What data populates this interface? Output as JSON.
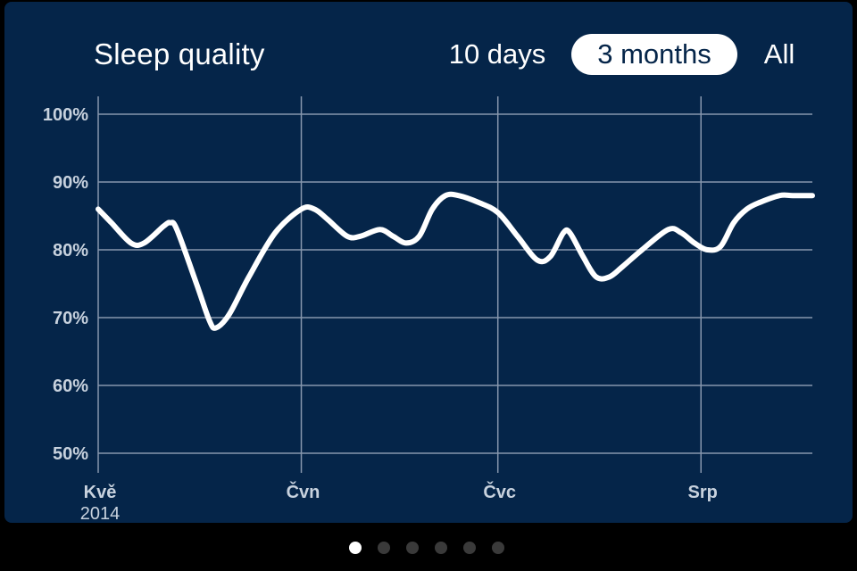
{
  "header": {
    "title": "Sleep quality",
    "ranges": [
      {
        "label": "10 days",
        "active": false
      },
      {
        "label": "3 months",
        "active": true
      },
      {
        "label": "All",
        "active": false
      }
    ]
  },
  "colors": {
    "background": "#052549",
    "line": "#ffffff",
    "grid": "#8797ad",
    "axis_label": "#c8d2de"
  },
  "chart_data": {
    "type": "line",
    "title": "Sleep quality",
    "xlabel": "",
    "ylabel": "",
    "ylim": [
      50,
      100
    ],
    "y_ticks": [
      "100%",
      "90%",
      "80%",
      "70%",
      "60%",
      "50%"
    ],
    "y_tick_values": [
      100,
      90,
      80,
      70,
      60,
      50
    ],
    "x_ticks": [
      {
        "label": "Kvě",
        "sub": "2014",
        "day": 0
      },
      {
        "label": "Čvn",
        "sub": "",
        "day": 31
      },
      {
        "label": "Čvc",
        "sub": "",
        "day": 61
      },
      {
        "label": "Srp",
        "sub": "",
        "day": 92
      }
    ],
    "x_max_day": 109,
    "grid": true,
    "series": [
      {
        "points": [
          [
            0,
            86
          ],
          [
            2,
            84
          ],
          [
            5,
            81
          ],
          [
            7,
            81
          ],
          [
            10,
            83.5
          ],
          [
            11,
            84
          ],
          [
            12,
            83
          ],
          [
            15,
            75
          ],
          [
            17,
            69.5
          ],
          [
            18,
            68.5
          ],
          [
            20,
            70.5
          ],
          [
            23,
            76
          ],
          [
            27,
            82.5
          ],
          [
            31,
            86
          ],
          [
            33,
            86
          ],
          [
            35,
            84.5
          ],
          [
            38,
            82
          ],
          [
            40,
            82
          ],
          [
            43,
            83
          ],
          [
            45,
            82
          ],
          [
            47,
            81
          ],
          [
            49,
            82
          ],
          [
            51,
            86
          ],
          [
            53,
            88
          ],
          [
            55,
            88
          ],
          [
            58,
            87
          ],
          [
            61,
            85.5
          ],
          [
            64,
            82
          ],
          [
            67,
            78.5
          ],
          [
            69,
            79
          ],
          [
            71,
            82.5
          ],
          [
            72,
            82.5
          ],
          [
            74,
            79
          ],
          [
            76,
            76
          ],
          [
            78,
            76
          ],
          [
            80,
            77.5
          ],
          [
            83,
            80
          ],
          [
            87,
            83
          ],
          [
            89,
            82.5
          ],
          [
            91,
            81
          ],
          [
            93,
            80
          ],
          [
            95,
            80.5
          ],
          [
            97,
            84
          ],
          [
            99,
            86
          ],
          [
            101,
            87
          ],
          [
            104,
            88
          ],
          [
            106,
            88
          ],
          [
            109,
            88
          ]
        ]
      }
    ]
  },
  "pagination": {
    "count": 6,
    "active_index": 0
  }
}
